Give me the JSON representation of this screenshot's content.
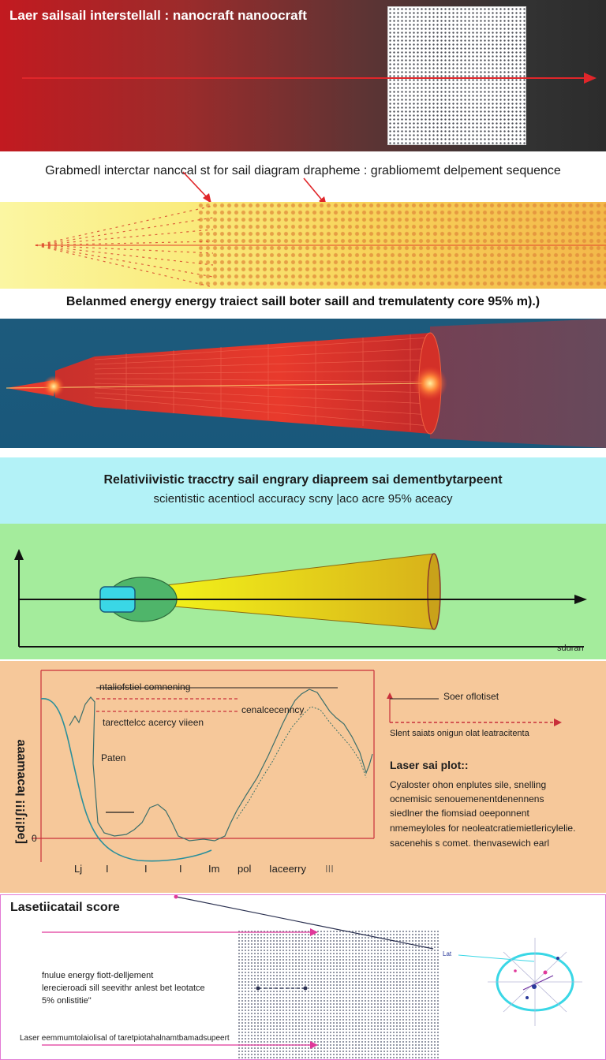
{
  "panel1": {
    "title": "Laer saiIsail interstellall : nanocraft nanoocraft"
  },
  "caption1": "Grabmedl interctar nanccal st for sail diagram drapheme : grabliomemt delpement sequence",
  "caption2": "Belanmed energy energy traiect saill boter saill  and tremulatenty core 95% m).)",
  "panel4": {
    "line1": "Relativiivistic tracctry sail engrary diapreem sai dementbytarpeent",
    "line2": "scientistic acentiocl accuracy scny |aco acre 95% aceacy"
  },
  "panel5": {
    "x_label": "sduran"
  },
  "panel6": {
    "y_label": "[əd!!ʃ!!! lɐɔɐɯɐɐɐ",
    "y_zero": "0",
    "legend": [
      "ntaliofstiel comnening",
      "cenalcecenncy",
      "tarecttelcc acercy viieen"
    ],
    "side_label": "Paten",
    "x_ticks": [
      "Lj",
      "I",
      "I",
      "I",
      "Im",
      "pol",
      "Iaceerry",
      "III"
    ],
    "right_legend": [
      "Soer oflotiset",
      "Slent saiats onigun olat leatracitenta"
    ],
    "plot_title": "Laser sai plot::",
    "plot_text": [
      "Cyaloster ohon enplutes sile, snelling",
      "ocnemisic senouemenentdenennens",
      "siedlner the fiomsiad oeeponnent",
      "nmemeyloles for neoleatcratiemietlericylelie.",
      "sacenehis s comet.  thenvasewich earl"
    ]
  },
  "panel7": {
    "title": "Lasetiicatail score",
    "lines": [
      "fnulue energy fiott-delljement",
      "lerecieroadi sill seevithr anlest bet leotatce",
      "5% onlistitie\""
    ],
    "footer": "Laser eemmumtolaiolisal of taretpiotahalnamtbamadsupeert",
    "lens_label": "Lat"
  },
  "colors": {
    "laser_red": "#e0262a",
    "plot_teal": "#2b8f9b",
    "plot_curve": "#3c6f6b",
    "frame_magenta": "#e27ad4",
    "ring_cyan": "#3ad7e6"
  }
}
